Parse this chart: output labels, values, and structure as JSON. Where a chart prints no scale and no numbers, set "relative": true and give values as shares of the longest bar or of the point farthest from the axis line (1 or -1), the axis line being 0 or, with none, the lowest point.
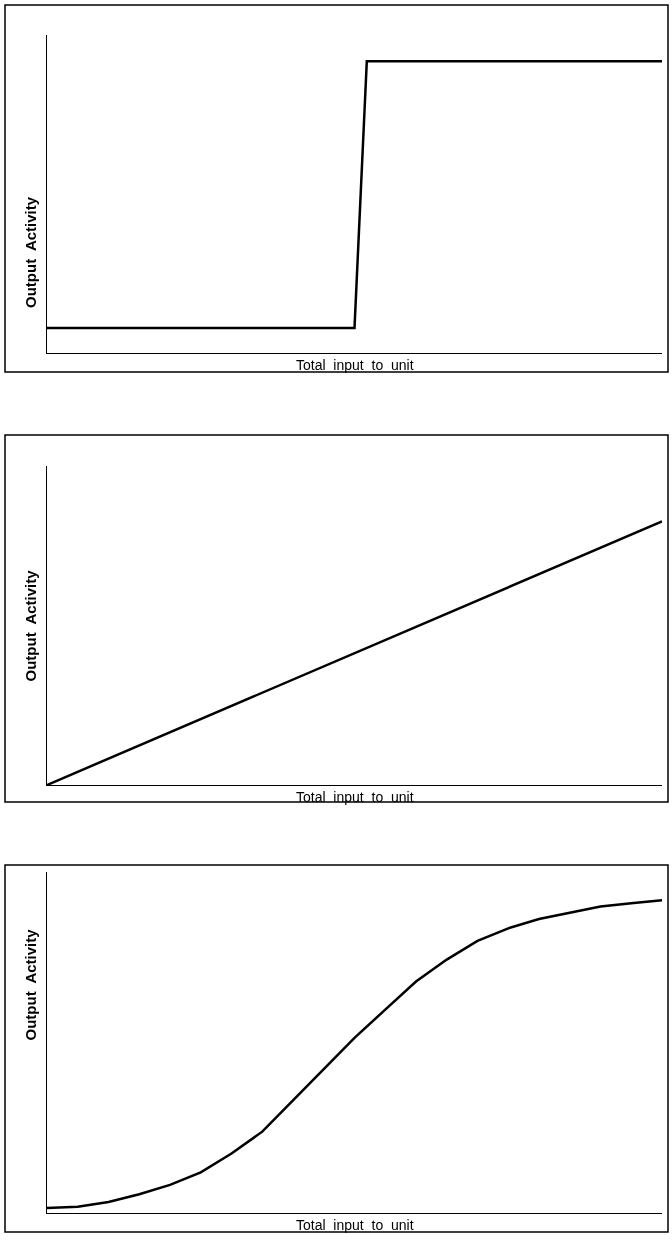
{
  "chart_data": [
    {
      "type": "line",
      "relative": true,
      "color": "#000000",
      "xlabel": "Total  input  to  unit",
      "ylabel": "Output  Activity",
      "categories": [
        null,
        null,
        null,
        null,
        null,
        null,
        null,
        null,
        null,
        null,
        null,
        null,
        null,
        null,
        null,
        null,
        null,
        null,
        null,
        null,
        null,
        null,
        null,
        null,
        null,
        null,
        null,
        null,
        null,
        null,
        null,
        null,
        null,
        null,
        null,
        null,
        null,
        null,
        null,
        null,
        null,
        null,
        null,
        null,
        null,
        null,
        null,
        null,
        null,
        null,
        null
      ],
      "values": [
        0.086,
        0.086,
        0.086,
        0.086,
        0.086,
        0.086,
        0.086,
        0.086,
        0.086,
        0.086,
        0.086,
        0.086,
        0.086,
        0.086,
        0.086,
        0.086,
        0.086,
        0.086,
        0.086,
        0.086,
        0.086,
        0.086,
        0.086,
        0.086,
        0.086,
        0.086,
        1,
        1,
        1,
        1,
        1,
        1,
        1,
        1,
        1,
        1,
        1,
        1,
        1,
        1,
        1,
        1,
        1,
        1,
        1,
        1,
        1,
        1,
        1,
        1,
        1
      ]
    },
    {
      "type": "line",
      "relative": true,
      "color": "#000000",
      "xlabel": "Total  input  to  unit",
      "ylabel": "Output  Activity",
      "categories": [
        null,
        null
      ],
      "values": [
        0,
        1
      ]
    },
    {
      "type": "line",
      "relative": true,
      "color": "#000000",
      "xlabel": "Total  input  to  unit",
      "ylabel": "Output  Activity",
      "categories": [
        null,
        null,
        null,
        null,
        null,
        null,
        null,
        null,
        null,
        null,
        null,
        null,
        null,
        null,
        null,
        null,
        null,
        null,
        null,
        null,
        null
      ],
      "values": [
        0.016,
        0.02,
        0.035,
        0.06,
        0.09,
        0.13,
        0.19,
        0.26,
        0.36,
        0.46,
        0.56,
        0.65,
        0.74,
        0.81,
        0.87,
        0.91,
        0.94,
        0.96,
        0.98,
        0.99,
        1
      ]
    }
  ]
}
